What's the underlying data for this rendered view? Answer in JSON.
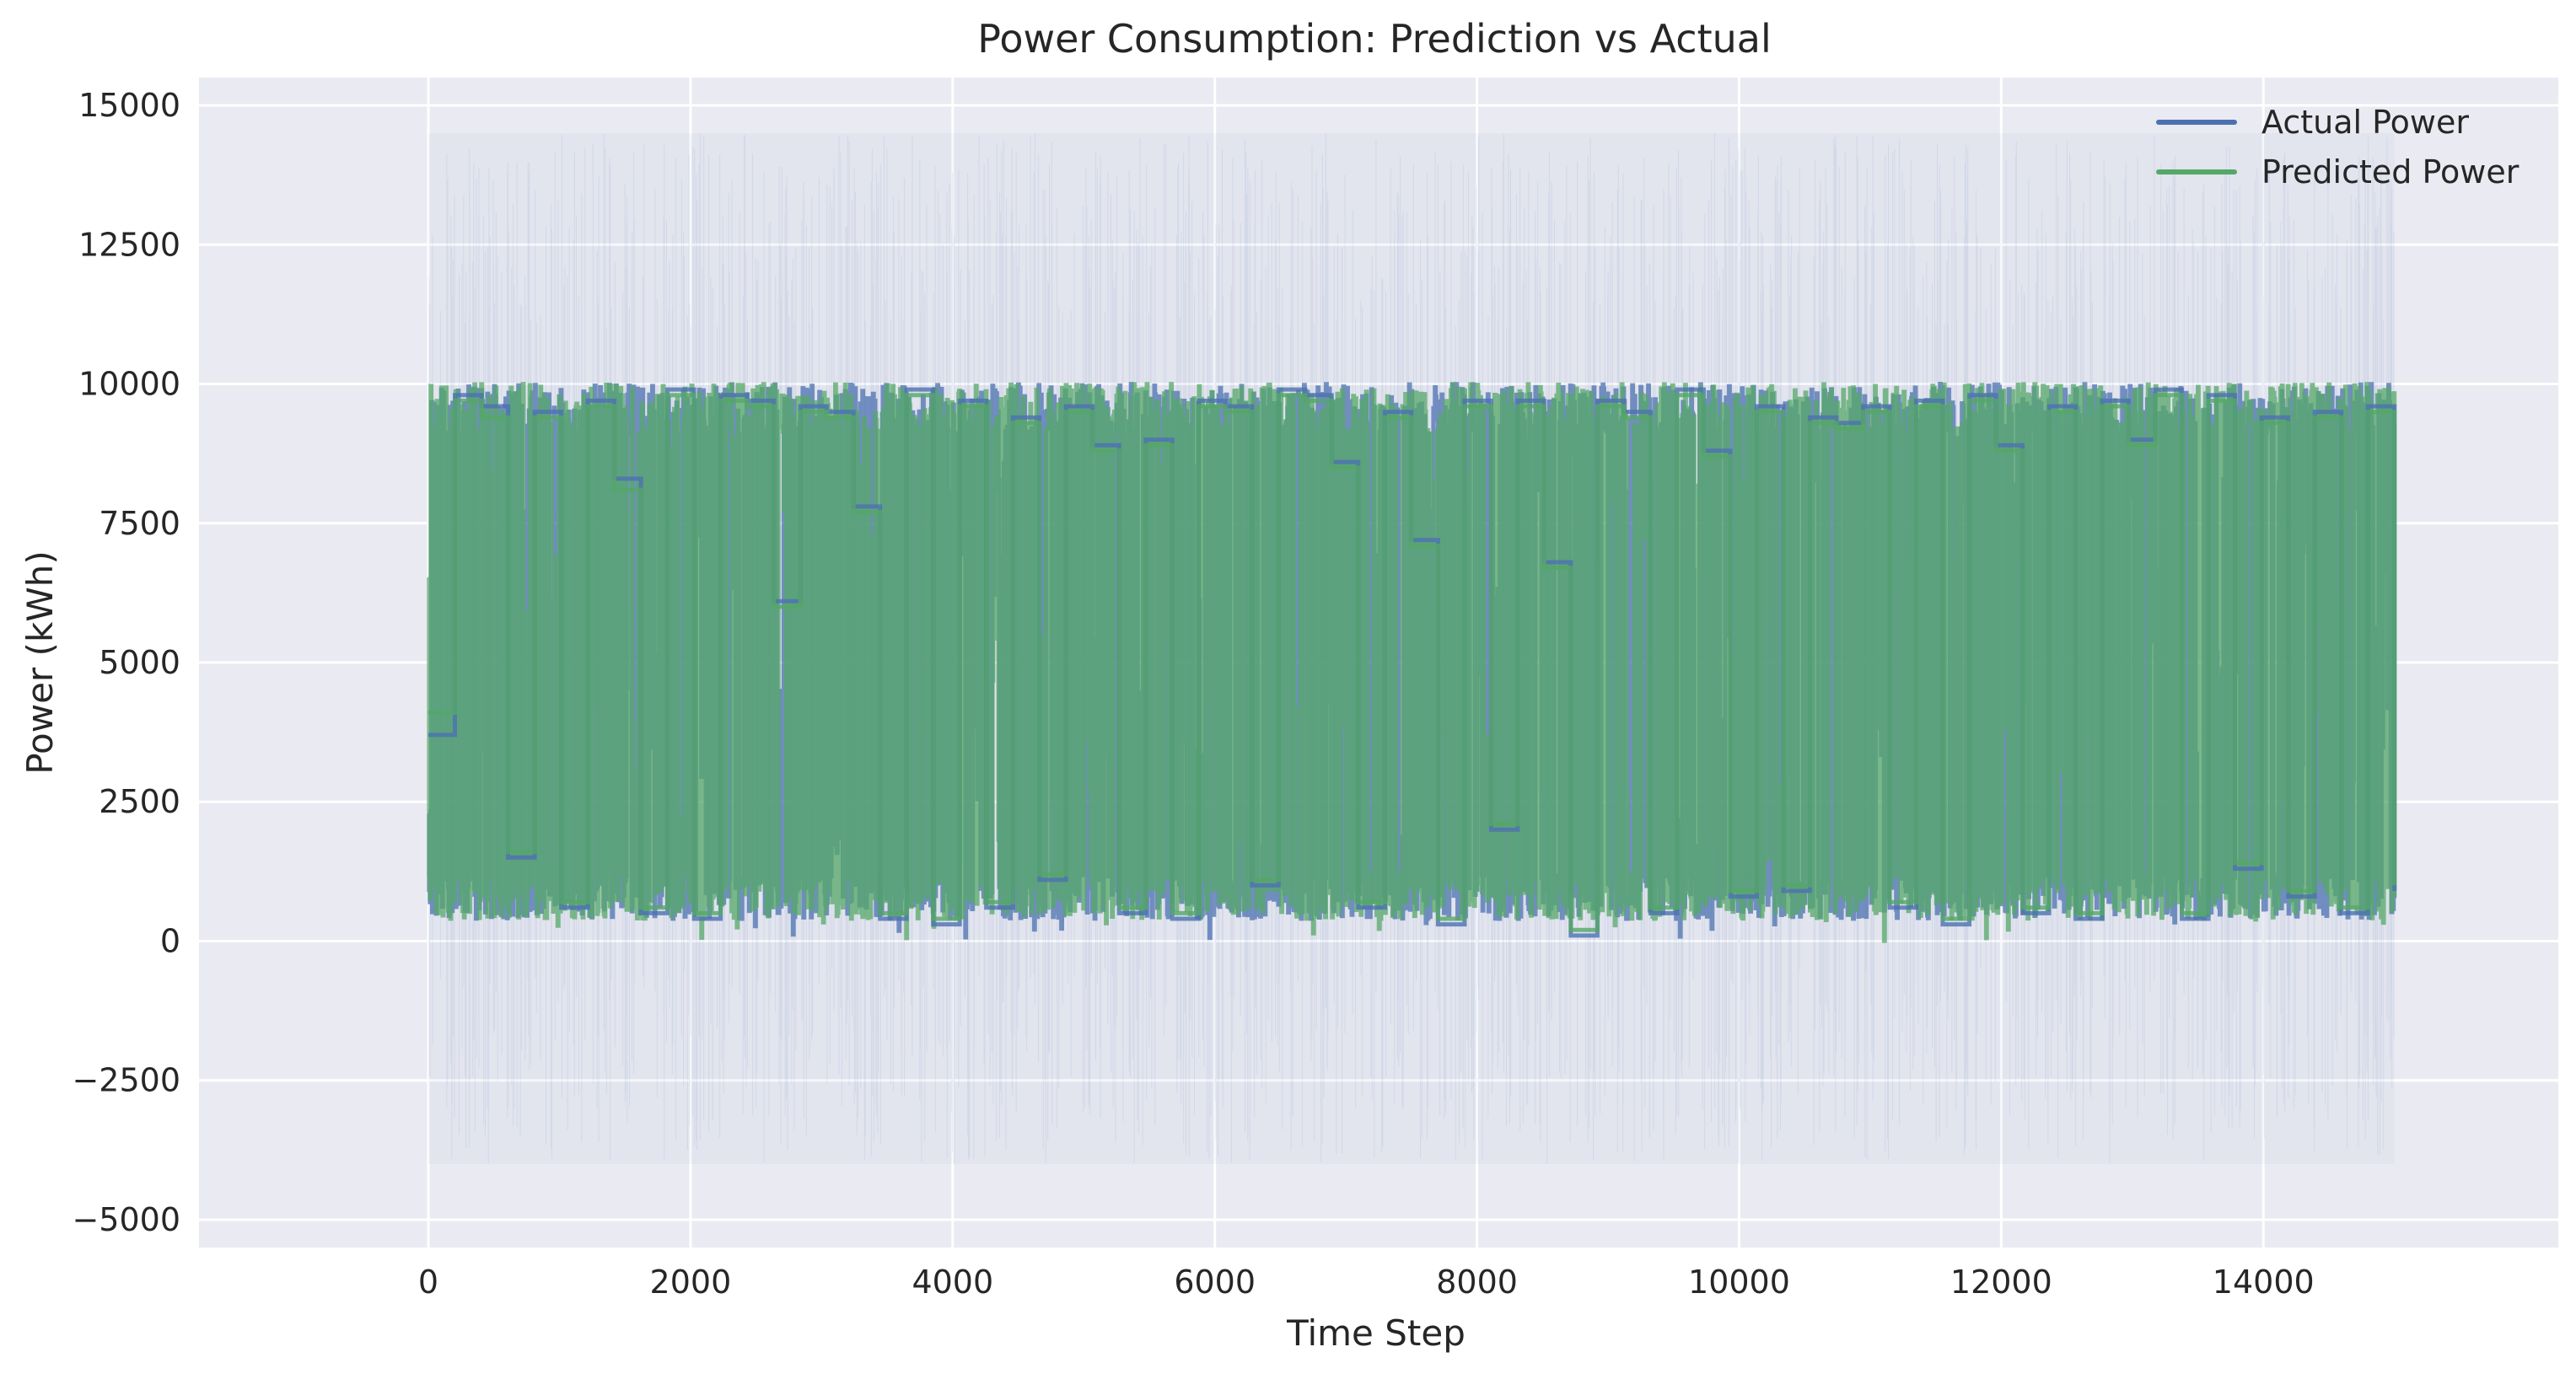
{
  "chart_data": {
    "type": "line",
    "title": "Power Consumption: Prediction vs Actual",
    "xlabel": "Time Step",
    "ylabel": "Power (kWh)",
    "xlim": [
      -1750,
      16250
    ],
    "ylim": [
      -5500,
      15500
    ],
    "x_ticks": [
      0,
      2000,
      4000,
      6000,
      8000,
      10000,
      12000,
      14000
    ],
    "x_tick_labels": [
      "0",
      "2000",
      "4000",
      "6000",
      "8000",
      "10000",
      "12000",
      "14000"
    ],
    "y_ticks": [
      -5000,
      -2500,
      0,
      2500,
      5000,
      7500,
      10000,
      12500,
      15000
    ],
    "y_tick_labels": [
      "−5000",
      "−2500",
      "0",
      "2500",
      "5000",
      "7500",
      "10000",
      "12500",
      "15000"
    ],
    "grid": true,
    "legend_position": "top-right",
    "x_range": [
      0,
      15000
    ],
    "series": [
      {
        "name": "Actual Power",
        "color": "#4c72b0",
        "style": "stepped line with light uncertainty band",
        "range": [
          0,
          10000
        ],
        "band_range": [
          -4000,
          14500
        ],
        "values": [
          3700,
          9800,
          9600,
          1500,
          9500,
          600,
          9700,
          8300,
          500,
          9900,
          400,
          9800,
          9700,
          6100,
          9600,
          9500,
          7800,
          400,
          9900,
          300,
          9700,
          600,
          9400,
          1100,
          9600,
          8900,
          500,
          9000,
          400,
          9700,
          9600,
          1000,
          9900,
          9800,
          8600,
          600,
          9500,
          7200,
          300,
          9700,
          2000,
          9700,
          6800,
          100,
          9700,
          9500,
          500,
          9900,
          8800,
          800,
          9600,
          900,
          9400,
          9300,
          9600,
          600,
          9700,
          300,
          9800,
          8900,
          500,
          9600,
          400,
          9700,
          9000,
          9900,
          400,
          9800,
          1300,
          9400,
          800,
          9500,
          500,
          9600,
          900
        ]
      },
      {
        "name": "Predicted Power",
        "color": "#55a868",
        "style": "stepped line",
        "range": [
          0,
          10000
        ],
        "values": [
          4100,
          9700,
          9400,
          1600,
          9400,
          700,
          9600,
          8100,
          600,
          9800,
          500,
          9700,
          9600,
          6000,
          9500,
          9400,
          7700,
          500,
          9800,
          400,
          9600,
          700,
          9300,
          1200,
          9500,
          8800,
          600,
          8900,
          500,
          9600,
          9500,
          1100,
          9800,
          9700,
          8500,
          700,
          9400,
          7100,
          400,
          9600,
          2100,
          9600,
          6700,
          200,
          9600,
          9400,
          600,
          9800,
          8700,
          900,
          9500,
          1000,
          9300,
          9200,
          9500,
          700,
          9600,
          400,
          9700,
          8800,
          600,
          9500,
          500,
          9600,
          8900,
          9800,
          500,
          9700,
          1400,
          9300,
          900,
          9400,
          600,
          9500,
          1000
        ]
      }
    ]
  }
}
